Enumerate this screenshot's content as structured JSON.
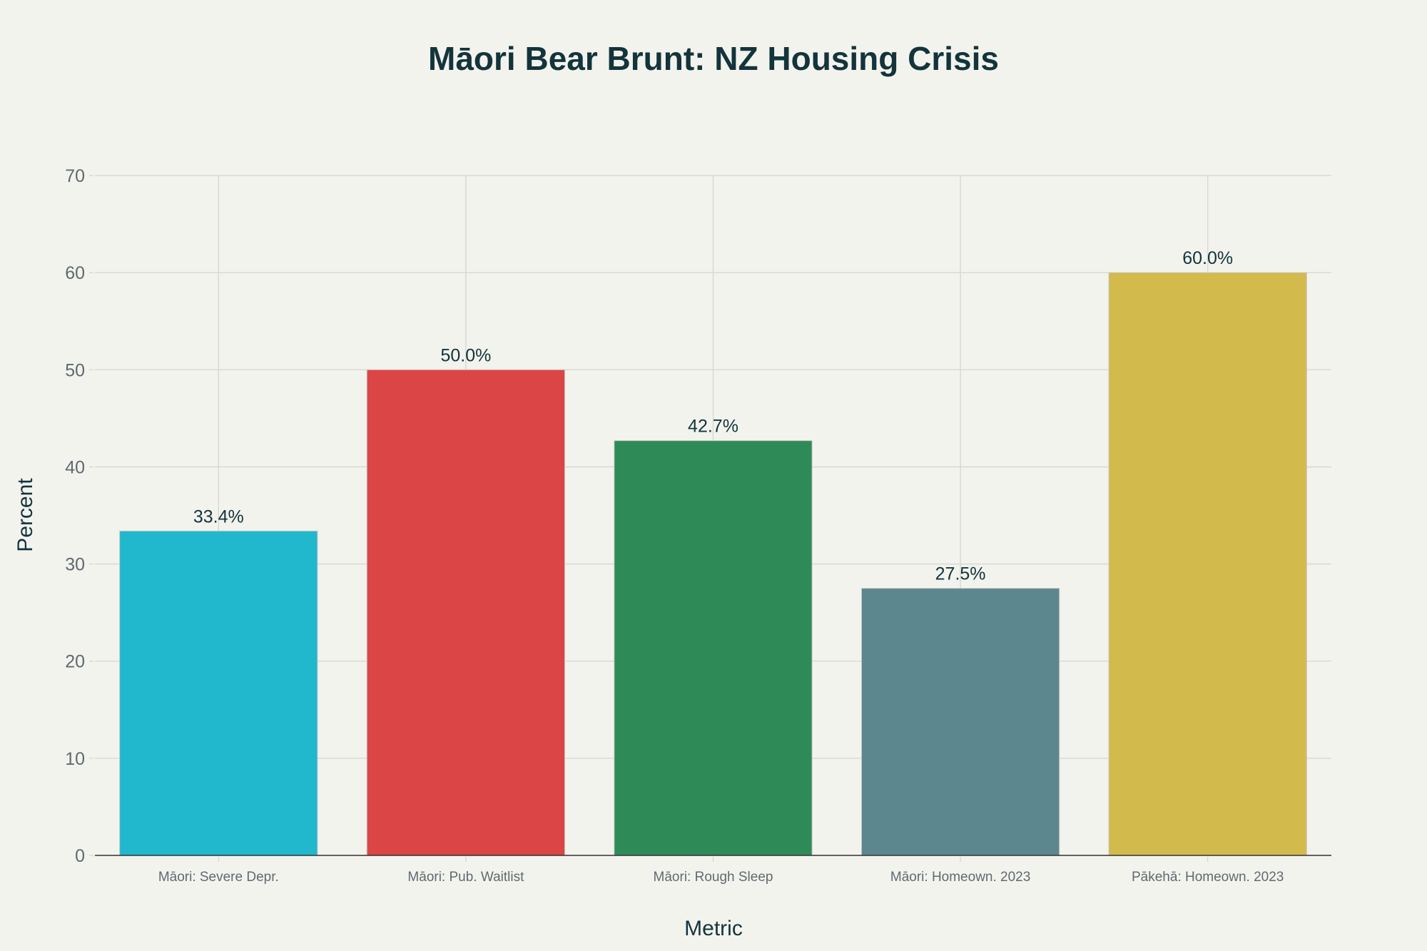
{
  "chart_data": {
    "type": "bar",
    "title": "Māori Bear Brunt: NZ Housing Crisis",
    "xlabel": "Metric",
    "ylabel": "Percent",
    "ylim": [
      0,
      70
    ],
    "yticks": [
      0,
      10,
      20,
      30,
      40,
      50,
      60,
      70
    ],
    "grid": true,
    "categories": [
      "Māori: Severe Depr.",
      "Māori: Pub. Waitlist",
      "Māori: Rough Sleep",
      "Māori: Homeown. 2023",
      "Pākehā: Homeown. 2023"
    ],
    "values": [
      33.4,
      50.0,
      42.7,
      27.5,
      60.0
    ],
    "data_labels": [
      "33.4%",
      "50.0%",
      "42.7%",
      "27.5%",
      "60.0%"
    ],
    "colors": [
      "#21b8cd",
      "#db4545",
      "#2e8b57",
      "#5d878f",
      "#d2ba4c"
    ]
  }
}
